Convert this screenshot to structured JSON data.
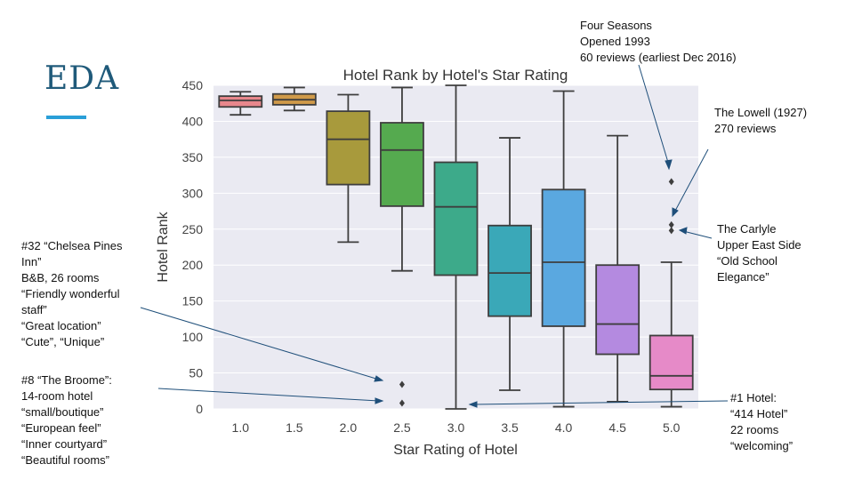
{
  "slide": {
    "title": "EDA"
  },
  "chart_data": {
    "type": "box",
    "title": "Hotel Rank by Hotel's Star Rating",
    "xlabel": "Star Rating of Hotel",
    "ylabel": "Hotel Rank",
    "ylim": [
      0,
      450
    ],
    "yticks": [
      0,
      50,
      100,
      150,
      200,
      250,
      300,
      350,
      400,
      450
    ],
    "categories": [
      "1.0",
      "1.5",
      "2.0",
      "2.5",
      "3.0",
      "3.5",
      "4.0",
      "4.5",
      "5.0"
    ],
    "boxes": [
      {
        "category": "1.0",
        "min": 409,
        "q1": 420,
        "median": 429,
        "q3": 435,
        "max": 441,
        "outliers": [],
        "color": "#e8878c"
      },
      {
        "category": "1.5",
        "min": 415,
        "q1": 423,
        "median": 430,
        "q3": 438,
        "max": 447,
        "outliers": [],
        "color": "#d09a4a"
      },
      {
        "category": "2.0",
        "min": 232,
        "q1": 312,
        "median": 375,
        "q3": 414,
        "max": 437,
        "outliers": [],
        "color": "#a89a3c"
      },
      {
        "category": "2.5",
        "min": 192,
        "q1": 282,
        "median": 360,
        "q3": 398,
        "max": 447,
        "outliers": [
          8,
          34
        ],
        "color": "#55aa4f"
      },
      {
        "category": "3.0",
        "min": 0,
        "q1": 186,
        "median": 281,
        "q3": 343,
        "max": 450,
        "outliers": [],
        "color": "#3daa8a"
      },
      {
        "category": "3.5",
        "min": 26,
        "q1": 129,
        "median": 189,
        "q3": 255,
        "max": 377,
        "outliers": [],
        "color": "#3aa8b8"
      },
      {
        "category": "4.0",
        "min": 3,
        "q1": 115,
        "median": 204,
        "q3": 305,
        "max": 442,
        "outliers": [],
        "color": "#5aa8e0"
      },
      {
        "category": "4.5",
        "min": 10,
        "q1": 76,
        "median": 118,
        "q3": 200,
        "max": 380,
        "outliers": [],
        "color": "#b48ae0"
      },
      {
        "category": "5.0",
        "min": 3,
        "q1": 27,
        "median": 46,
        "q3": 102,
        "max": 204,
        "outliers": [
          248,
          256,
          316
        ],
        "color": "#e68ac8"
      }
    ],
    "background": "#eaeaf2",
    "grid": true
  },
  "annotations": {
    "four_seasons": "Four Seasons\nOpened 1993\n60 reviews (earliest Dec 2016)",
    "lowell": "The Lowell (1927)\n270 reviews",
    "carlyle": "The Carlyle\nUpper East Side\n“Old School\nElegance”",
    "chelsea": "#32 “Chelsea Pines\nInn”\nB&B, 26 rooms\n“Friendly wonderful\nstaff”\n“Great location”\n“Cute”, “Unique”",
    "broome": "#8 “The Broome”:\n14-room hotel\n“small/boutique”\n“European feel”\n“Inner courtyard”\n“Beautiful rooms”",
    "hotel414": "#1 Hotel:\n“414 Hotel”\n22 rooms\n“welcoming”"
  }
}
